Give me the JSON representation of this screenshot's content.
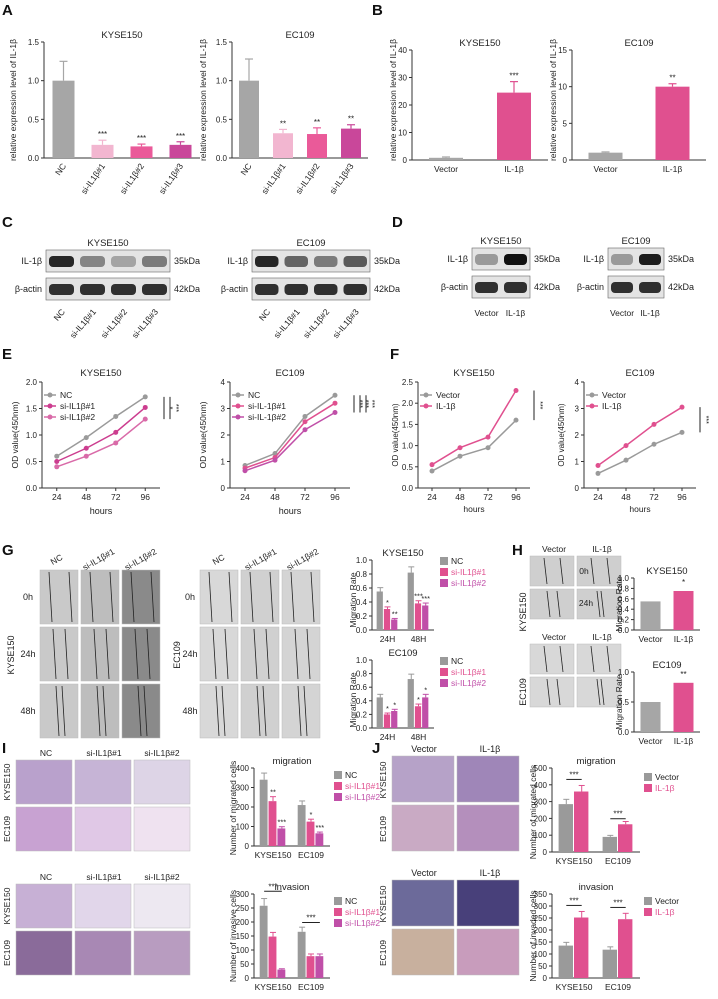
{
  "panel_letters": [
    "A",
    "B",
    "C",
    "D",
    "E",
    "F",
    "G",
    "H",
    "I",
    "J"
  ],
  "panelA": {
    "ylabel": "relative expression level of IL-1β",
    "left": {
      "title": "KYSE150",
      "categories": [
        "NC",
        "si-IL1β#1",
        "si-IL1β#2",
        "si-IL1β#3"
      ],
      "values": [
        1.0,
        0.17,
        0.15,
        0.17
      ],
      "errors": [
        0.25,
        0.06,
        0.03,
        0.04
      ],
      "sig": [
        "",
        "***",
        "***",
        "***"
      ],
      "ylim": [
        0,
        1.5
      ],
      "yticks": [
        "0.0",
        "0.5",
        "1.0",
        "1.5"
      ]
    },
    "right": {
      "title": "EC109",
      "categories": [
        "NC",
        "si-IL1β#1",
        "si-IL1β#2",
        "si-IL1β#3"
      ],
      "values": [
        1.0,
        0.32,
        0.31,
        0.38
      ],
      "errors": [
        0.28,
        0.05,
        0.08,
        0.05
      ],
      "sig": [
        "",
        "**",
        "**",
        "**"
      ],
      "ylim": [
        0,
        1.5
      ],
      "yticks": [
        "0.0",
        "0.5",
        "1.0",
        "1.5"
      ]
    }
  },
  "panelB": {
    "ylabel": "relative expression level of IL-1β",
    "left": {
      "title": "KYSE150",
      "categories": [
        "Vector",
        "IL-1β"
      ],
      "values": [
        0.8,
        24.5
      ],
      "errors": [
        0.3,
        4.0
      ],
      "sig": [
        "",
        "***"
      ],
      "ylim": [
        0,
        40
      ],
      "yticks": [
        "0",
        "10",
        "20",
        "30",
        "40"
      ]
    },
    "right": {
      "title": "EC109",
      "categories": [
        "Vector",
        "IL-1β"
      ],
      "values": [
        1.0,
        10.0
      ],
      "errors": [
        0.1,
        0.4
      ],
      "sig": [
        "",
        "**"
      ],
      "ylim": [
        0,
        15
      ],
      "yticks": [
        "0",
        "5",
        "10",
        "15"
      ]
    }
  },
  "panelC": {
    "left": {
      "title": "KYSE150",
      "rows": [
        "IL-1β",
        "β-actin"
      ],
      "kda": [
        "35kDa",
        "42kDa"
      ],
      "lanes": [
        "NC",
        "si-IL1β#1",
        "si-IL1β#2",
        "si-IL1β#3"
      ]
    },
    "right": {
      "title": "EC109",
      "rows": [
        "IL-1β",
        "β-actin"
      ],
      "kda": [
        "35kDa",
        "42kDa"
      ],
      "lanes": [
        "NC",
        "si-IL1β#1",
        "si-IL1β#2",
        "si-IL1β#3"
      ]
    }
  },
  "panelD": {
    "left": {
      "title": "KYSE150",
      "rows": [
        "IL-1β",
        "β-actin"
      ],
      "kda": [
        "35kDa",
        "42kDa"
      ],
      "lanes": [
        "Vector",
        "IL-1β"
      ]
    },
    "right": {
      "title": "EC109",
      "rows": [
        "IL-1β",
        "β-actin"
      ],
      "kda": [
        "35kDa",
        "42kDa"
      ],
      "lanes": [
        "Vector",
        "IL-1β"
      ]
    }
  },
  "panelE": {
    "ylabel": "OD value(450nm)",
    "xlabel": "hours",
    "left": {
      "title": "KYSE150",
      "x": [
        24,
        48,
        72,
        96
      ],
      "xticks": [
        "24",
        "48",
        "72",
        "96"
      ],
      "ylim": [
        0,
        2
      ],
      "yticks": [
        "0.0",
        "0.5",
        "1.0",
        "1.5",
        "2.0"
      ],
      "series": [
        {
          "name": "NC",
          "color": "#9a9a9a",
          "values": [
            0.6,
            0.95,
            1.35,
            1.72
          ]
        },
        {
          "name": "si-IL1β#1",
          "color": "#cc3d8f",
          "values": [
            0.5,
            0.75,
            1.05,
            1.52
          ]
        },
        {
          "name": "si-IL1β#2",
          "color": "#d96aa8",
          "values": [
            0.4,
            0.6,
            0.85,
            1.3
          ]
        }
      ],
      "sig": [
        "*",
        "***"
      ]
    },
    "right": {
      "title": "EC109",
      "x": [
        24,
        48,
        72,
        96
      ],
      "xticks": [
        "24",
        "48",
        "72",
        "96"
      ],
      "ylim": [
        0,
        4
      ],
      "yticks": [
        "0",
        "1",
        "2",
        "3",
        "4"
      ],
      "series": [
        {
          "name": "NC",
          "color": "#9a9a9a",
          "values": [
            0.85,
            1.3,
            2.7,
            3.5
          ]
        },
        {
          "name": "si-IL-1β#1",
          "color": "#e0508f",
          "values": [
            0.75,
            1.15,
            2.5,
            3.2
          ]
        },
        {
          "name": "si-IL-1β#2",
          "color": "#c04fa8",
          "values": [
            0.65,
            1.05,
            2.2,
            2.85
          ]
        }
      ],
      "sig": [
        "***",
        "***",
        "***"
      ]
    }
  },
  "panelF": {
    "ylabel": "OD value(450nm)",
    "xlabel": "hours",
    "left": {
      "title": "KYSE150",
      "x": [
        24,
        48,
        72,
        96
      ],
      "xticks": [
        "24",
        "48",
        "72",
        "96"
      ],
      "ylim": [
        0,
        2.5
      ],
      "yticks": [
        "0.0",
        "0.5",
        "1.0",
        "1.5",
        "2.0",
        "2.5"
      ],
      "series": [
        {
          "name": "Vector",
          "color": "#9a9a9a",
          "values": [
            0.4,
            0.75,
            0.95,
            1.6
          ]
        },
        {
          "name": "IL-1β",
          "color": "#e0508f",
          "values": [
            0.55,
            0.95,
            1.2,
            2.3
          ]
        }
      ],
      "sig": [
        "***"
      ]
    },
    "right": {
      "title": "EC109",
      "x": [
        24,
        48,
        72,
        96
      ],
      "xticks": [
        "24",
        "48",
        "72",
        "96"
      ],
      "ylim": [
        0,
        4
      ],
      "yticks": [
        "0",
        "1",
        "2",
        "3",
        "4"
      ],
      "series": [
        {
          "name": "Vector",
          "color": "#9a9a9a",
          "values": [
            0.55,
            1.05,
            1.65,
            2.1
          ]
        },
        {
          "name": "IL-1β",
          "color": "#e0508f",
          "values": [
            0.85,
            1.6,
            2.4,
            3.05
          ]
        }
      ],
      "sig": [
        "***"
      ]
    }
  },
  "panelG": {
    "col_labels_left": [
      "NC",
      "si-IL1β#1",
      "si-IL1β#2"
    ],
    "col_labels_right": [
      "NC",
      "si-IL1β#1",
      "si-IL1β#2"
    ],
    "row_labels": [
      "0h",
      "24h",
      "48h"
    ],
    "cell_left": "KYSE150",
    "cell_right": "EC109",
    "ylabel": "Migration Rate",
    "chart_top": {
      "title": "KYSE150",
      "categories": [
        "24H",
        "48H"
      ],
      "ylim": [
        0,
        1
      ],
      "yticks": [
        "0.0",
        "0.2",
        "0.4",
        "0.6",
        "0.8",
        "1.0"
      ],
      "series": [
        {
          "name": "NC",
          "color": "#9a9a9a",
          "values": [
            0.55,
            0.82
          ]
        },
        {
          "name": "si-IL1β#1",
          "color": "#e0508f",
          "values": [
            0.3,
            0.38
          ]
        },
        {
          "name": "si-IL1β#2",
          "color": "#c04fa8",
          "values": [
            0.15,
            0.35
          ]
        }
      ],
      "sig": [
        [
          "",
          "*",
          "**"
        ],
        [
          "",
          "***",
          "***"
        ]
      ]
    },
    "chart_bottom": {
      "title": "EC109",
      "categories": [
        "24H",
        "48H"
      ],
      "ylim": [
        0,
        1
      ],
      "yticks": [
        "0.0",
        "0.2",
        "0.4",
        "0.6",
        "0.8",
        "1.0"
      ],
      "series": [
        {
          "name": "NC",
          "color": "#9a9a9a",
          "values": [
            0.45,
            0.72
          ]
        },
        {
          "name": "si-IL1β#1",
          "color": "#e0508f",
          "values": [
            0.2,
            0.32
          ]
        },
        {
          "name": "si-IL1β#2",
          "color": "#c04fa8",
          "values": [
            0.25,
            0.45
          ]
        }
      ],
      "sig": [
        [
          "",
          "*",
          "*"
        ],
        [
          "",
          "*",
          "*"
        ]
      ]
    }
  },
  "panelH": {
    "col_labels": [
      "Vector",
      "IL-1β"
    ],
    "row_labels": [
      "0h",
      "24h"
    ],
    "cells": [
      "KYSE150",
      "EC109"
    ],
    "ylabel": "Migration Rate",
    "chart_top": {
      "title": "KYSE150",
      "categories": [
        "Vector",
        "IL-1β"
      ],
      "values": [
        0.55,
        0.75
      ],
      "ylim": [
        0,
        1
      ],
      "yticks": [
        "0.0",
        "0.2",
        "0.4",
        "0.6",
        "0.8",
        "1.0"
      ],
      "sig": [
        "",
        "*"
      ]
    },
    "chart_bottom": {
      "title": "EC109",
      "categories": [
        "Vector",
        "IL-1β"
      ],
      "values": [
        0.5,
        0.82
      ],
      "ylim": [
        0,
        1
      ],
      "yticks": [
        "0.0",
        "0.5",
        "1.0"
      ],
      "sig": [
        "",
        "**"
      ]
    }
  },
  "panelI": {
    "col_labels": [
      "NC",
      "si-IL1β#1",
      "si-IL1β#2"
    ],
    "row_labels": [
      "KYSE150",
      "EC109"
    ],
    "migration": {
      "title": "migration",
      "ylabel": "Number of migrated cells",
      "categories": [
        "KYSE150",
        "EC109"
      ],
      "ylim": [
        0,
        400
      ],
      "yticks": [
        "0",
        "100",
        "200",
        "300",
        "400"
      ],
      "series": [
        {
          "name": "NC",
          "color": "#9a9a9a",
          "values": [
            340,
            210
          ]
        },
        {
          "name": "si-IL1β#1",
          "color": "#e0508f",
          "values": [
            230,
            125
          ]
        },
        {
          "name": "si-IL1β#2",
          "color": "#c04fa8",
          "values": [
            90,
            65
          ]
        }
      ],
      "sig": [
        [
          "",
          "**",
          "***"
        ],
        [
          "",
          "*",
          "***"
        ]
      ]
    },
    "invasion": {
      "title": "invasion",
      "ylabel": "Number of invasive cells",
      "categories": [
        "KYSE150",
        "EC109"
      ],
      "ylim": [
        0,
        300
      ],
      "yticks": [
        "0",
        "50",
        "100",
        "150",
        "200",
        "250",
        "300"
      ],
      "series": [
        {
          "name": "NC",
          "color": "#9a9a9a",
          "values": [
            258,
            165
          ]
        },
        {
          "name": "si-IL1β#1",
          "color": "#e0508f",
          "values": [
            148,
            78
          ]
        },
        {
          "name": "si-IL1β#2",
          "color": "#c04fa8",
          "values": [
            30,
            78
          ]
        }
      ],
      "sig": [
        "***",
        "***"
      ]
    }
  },
  "panelJ": {
    "col_labels": [
      "Vector",
      "IL-1β"
    ],
    "row_labels": [
      "KYSE150",
      "EC109"
    ],
    "migration": {
      "title": "migration",
      "ylabel": "Number of migrated cells",
      "categories": [
        "KYSE150",
        "EC109"
      ],
      "ylim": [
        0,
        500
      ],
      "yticks": [
        "0",
        "100",
        "200",
        "300",
        "400",
        "500"
      ],
      "series": [
        {
          "name": "Vector",
          "color": "#9a9a9a",
          "values": [
            285,
            90
          ]
        },
        {
          "name": "IL-1β",
          "color": "#e0508f",
          "values": [
            360,
            165
          ]
        }
      ],
      "sig": [
        "***",
        "***"
      ]
    },
    "invasion": {
      "title": "invasion",
      "ylabel": "Number of invaded cells",
      "categories": [
        "KYSE150",
        "EC109"
      ],
      "ylim": [
        0,
        350
      ],
      "yticks": [
        "0",
        "50",
        "100",
        "150",
        "200",
        "250",
        "300",
        "350"
      ],
      "series": [
        {
          "name": "Vector",
          "color": "#9a9a9a",
          "values": [
            135,
            118
          ]
        },
        {
          "name": "IL-1β",
          "color": "#e0508f",
          "values": [
            252,
            245
          ]
        }
      ],
      "sig": [
        "***",
        "***"
      ]
    }
  }
}
